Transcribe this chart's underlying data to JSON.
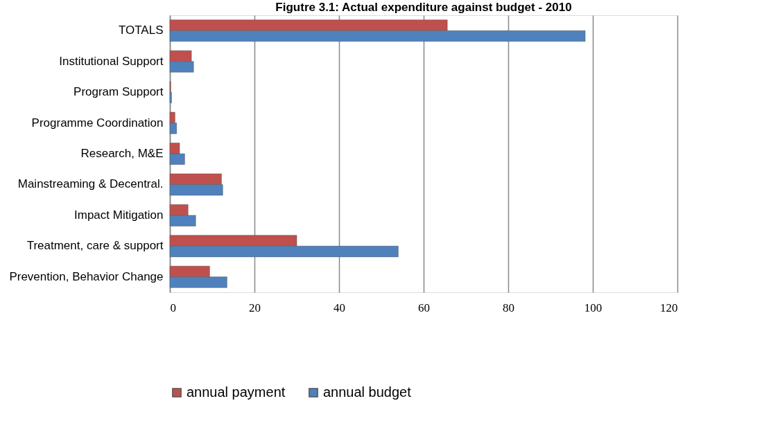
{
  "chart_data": {
    "type": "bar",
    "orientation": "horizontal",
    "title": "Figutre 3.1: Actual expenditure against budget  - 2010",
    "categories": [
      "TOTALS",
      "Institutional Support",
      "Program Support",
      "Programme Coordination",
      "Research, M&E",
      "Mainstreaming & Decentral.",
      "Impact Mitigation",
      "Treatment, care & support",
      "Prevention,  Behavior Change"
    ],
    "series": [
      {
        "name": "annual payment",
        "color": "#c0504d",
        "values": [
          65.6,
          5.1,
          0.2,
          1.2,
          2.3,
          12.2,
          4.3,
          30.0,
          9.4
        ]
      },
      {
        "name": "annual budget",
        "color": "#4f81bd",
        "values": [
          98.2,
          5.6,
          0.4,
          1.6,
          3.5,
          12.5,
          6.1,
          54.0,
          13.5
        ]
      }
    ],
    "xlim": [
      0,
      120
    ],
    "xticks": [
      0,
      20,
      40,
      60,
      80,
      100,
      120
    ],
    "grid": "x",
    "legend": "bottom"
  }
}
